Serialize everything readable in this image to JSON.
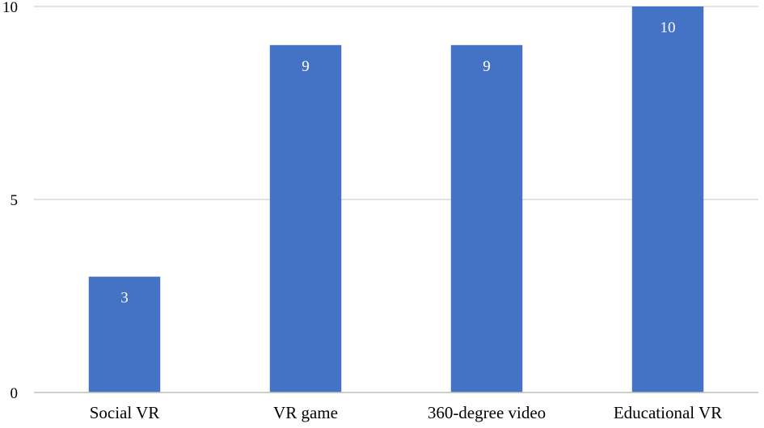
{
  "chart_data": {
    "type": "bar",
    "categories": [
      "Social VR",
      "VR game",
      "360-degree video",
      "Educational VR"
    ],
    "values": [
      3,
      9,
      9,
      10
    ],
    "ylim": [
      0,
      10
    ],
    "yticks": [
      0,
      5,
      10
    ],
    "ytick_labels": [
      "0",
      "5",
      "10"
    ],
    "data_labels": [
      "3",
      "9",
      "9",
      "10"
    ],
    "grid": true,
    "legend": "none",
    "bar_color": "#4472C4"
  }
}
